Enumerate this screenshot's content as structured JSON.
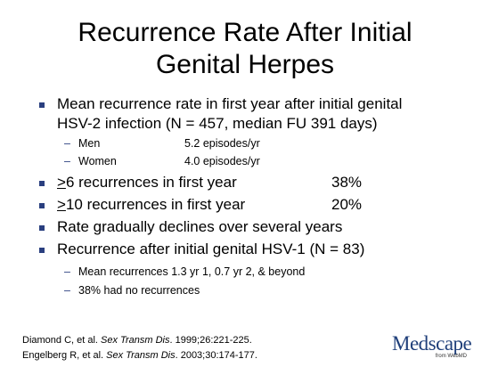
{
  "slide": {
    "title_line1": "Recurrence Rate After Initial",
    "title_line2": "Genital Herpes",
    "bullet1_line1": "Mean recurrence rate in first year after initial genital",
    "bullet1_line2": "HSV-2 infection (N = 457, median FU 391 days)",
    "sub_men_label": "Men",
    "sub_men_value": "5.2 episodes/yr",
    "sub_women_label": "Women",
    "sub_women_value": "4.0 episodes/yr",
    "bullet2_symbol": ">",
    "bullet2_text": "6 recurrences in first year",
    "bullet2_value": "38%",
    "bullet3_symbol": ">",
    "bullet3_text": "10 recurrences in first year",
    "bullet3_value": "20%",
    "bullet4_text": "Rate gradually declines over several years",
    "bullet5_text": "Recurrence after initial genital HSV-1 (N = 83)",
    "sub5_1": "Mean recurrences 1.3 yr 1, 0.7 yr 2, & beyond",
    "sub5_2": "38% had no recurrences"
  },
  "references": {
    "ref1_authors": "Diamond C, et al. ",
    "ref1_journal": "Sex Transm Dis",
    "ref1_rest": ". 1999;26:221-225.",
    "ref2_authors": "Engelberg R, et al. ",
    "ref2_journal": "Sex Transm Dis",
    "ref2_rest": ". 2003;30:174-177."
  },
  "logo": {
    "name": "Medscape",
    "tagline": "from WebMD",
    "color": "#1f3f7a"
  },
  "colors": {
    "bullet": "#2a3f7f"
  }
}
